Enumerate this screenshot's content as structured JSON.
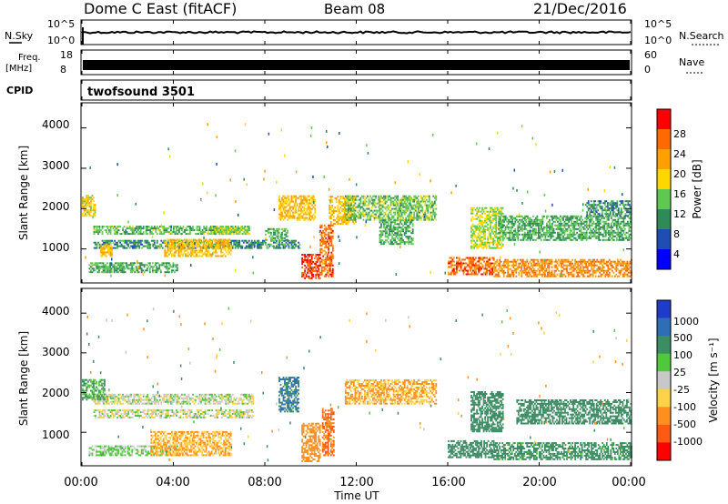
{
  "header": {
    "station": "Dome C East (fitACF)",
    "beam": "Beam 08",
    "date": "21/Dec/2016"
  },
  "nsky_panel": {
    "left_label": "N.Sky",
    "right_label": "N.Search",
    "left_ticks": [
      "10^5",
      "10^0"
    ],
    "right_ticks": [
      "10^5",
      "10^0"
    ]
  },
  "freq_panel": {
    "left_label_top": "Freq.",
    "left_label_bottom": "[MHz]",
    "right_label": "Nave",
    "left_ticks": [
      "18",
      "8"
    ],
    "right_ticks": [
      "60",
      "0"
    ]
  },
  "cpid_panel": {
    "label": "CPID",
    "text": "twofsound 3501"
  },
  "power_panel": {
    "ylabel": "Slant Range [km]",
    "yticks": [
      "4000",
      "3000",
      "2000",
      "1000"
    ],
    "colorbar_label": "Power [dB]",
    "colorbar_ticks": [
      "28",
      "24",
      "20",
      "16",
      "12",
      "8",
      "4"
    ],
    "colors": [
      "#0000ff",
      "#1e4eb4",
      "#2e8b57",
      "#5ec850",
      "#ffd700",
      "#ff9f00",
      "#ff6a00",
      "#ff0000"
    ]
  },
  "velocity_panel": {
    "ylabel": "Slant Range [km]",
    "yticks": [
      "4000",
      "3000",
      "2000",
      "1000"
    ],
    "colorbar_label": "Velocity [m s⁻¹]",
    "colorbar_ticks": [
      "1000",
      "500",
      "100",
      "25",
      "-25",
      "-100",
      "-500",
      "-1000"
    ],
    "colors": [
      "#1e3cc8",
      "#2e6eb4",
      "#3c8c64",
      "#50c83c",
      "#c8c8c8",
      "#ffd24a",
      "#ff9020",
      "#ff5a14",
      "#ff0000"
    ]
  },
  "xaxis": {
    "label": "Time UT",
    "ticks": [
      "00:00",
      "04:00",
      "08:00",
      "12:00",
      "16:00",
      "20:00",
      "00:00"
    ]
  },
  "chart_data": {
    "type": "heatmap",
    "title": "Dome C East (fitACF)  Beam 08  21/Dec/2016",
    "xlabel": "Time UT",
    "ylabel": "Slant Range [km]",
    "x_range_hours": [
      0,
      24
    ],
    "y_range_km": [
      180,
      4600
    ],
    "power_levels_dB": [
      4,
      8,
      12,
      16,
      20,
      24,
      28
    ],
    "velocity_levels_ms": [
      -1000,
      -500,
      -100,
      -25,
      25,
      100,
      500,
      1000
    ],
    "panels": [
      {
        "name": "Power [dB]",
        "regions": [
          {
            "t": [
              0.5,
              7.3
            ],
            "r": [
              1350,
              1550
            ],
            "v": 13
          },
          {
            "t": [
              0.5,
              9.5
            ],
            "r": [
              1000,
              1200
            ],
            "v": 10
          },
          {
            "t": [
              0.0,
              0.6
            ],
            "r": [
              1800,
              2300
            ],
            "v": 18
          },
          {
            "t": [
              0.8,
              1.3
            ],
            "r": [
              800,
              1100
            ],
            "v": 20
          },
          {
            "t": [
              0.3,
              4.2
            ],
            "r": [
              400,
              650
            ],
            "v": 12
          },
          {
            "t": [
              3.6,
              6.5
            ],
            "r": [
              800,
              1250
            ],
            "v": 20
          },
          {
            "t": [
              5.5,
              7.3
            ],
            "r": [
              1350,
              1500
            ],
            "v": 16
          },
          {
            "t": [
              8.0,
              9.0
            ],
            "r": [
              1200,
              1500
            ],
            "v": 13
          },
          {
            "t": [
              8.6,
              10.2
            ],
            "r": [
              1700,
              2300
            ],
            "v": 20
          },
          {
            "t": [
              9.6,
              10.4
            ],
            "r": [
              250,
              850
            ],
            "v": 28
          },
          {
            "t": [
              10.4,
              11.0
            ],
            "r": [
              300,
              1600
            ],
            "v": 26
          },
          {
            "t": [
              10.8,
              12.0
            ],
            "r": [
              1600,
              2300
            ],
            "v": 20
          },
          {
            "t": [
              11.5,
              15.5
            ],
            "r": [
              1700,
              2300
            ],
            "v": 14
          },
          {
            "t": [
              13.0,
              14.5
            ],
            "r": [
              1100,
              1700
            ],
            "v": 12
          },
          {
            "t": [
              16.0,
              18.0
            ],
            "r": [
              350,
              800
            ],
            "v": 26
          },
          {
            "t": [
              17.0,
              18.4
            ],
            "r": [
              1000,
              2000
            ],
            "v": 16
          },
          {
            "t": [
              18.0,
              24.0
            ],
            "r": [
              300,
              750
            ],
            "v": 24
          },
          {
            "t": [
              18.2,
              24.0
            ],
            "r": [
              1200,
              1800
            ],
            "v": 12
          },
          {
            "t": [
              22.0,
              24.0
            ],
            "r": [
              1800,
              2200
            ],
            "v": 10
          }
        ]
      },
      {
        "name": "Velocity [m s⁻¹]",
        "regions": [
          {
            "t": [
              0.5,
              7.5
            ],
            "r": [
              1700,
              1950
            ],
            "v": 0
          },
          {
            "t": [
              0.5,
              7.5
            ],
            "r": [
              1350,
              1550
            ],
            "v": 0
          },
          {
            "t": [
              0.3,
              4.2
            ],
            "r": [
              400,
              650
            ],
            "v": 50
          },
          {
            "t": [
              3.0,
              6.5
            ],
            "r": [
              400,
              1000
            ],
            "v": -100
          },
          {
            "t": [
              0.0,
              1.0
            ],
            "r": [
              1800,
              2300
            ],
            "v": 100
          },
          {
            "t": [
              8.6,
              9.5
            ],
            "r": [
              1500,
              2400
            ],
            "v": 500
          },
          {
            "t": [
              9.6,
              10.4
            ],
            "r": [
              250,
              1200
            ],
            "v": -200
          },
          {
            "t": [
              10.5,
              11.0
            ],
            "r": [
              400,
              1600
            ],
            "v": -500
          },
          {
            "t": [
              11.5,
              15.5
            ],
            "r": [
              1700,
              2300
            ],
            "v": -100
          },
          {
            "t": [
              16.0,
              18.0
            ],
            "r": [
              350,
              800
            ],
            "v": 200
          },
          {
            "t": [
              17.0,
              18.4
            ],
            "r": [
              1000,
              2000
            ],
            "v": 200
          },
          {
            "t": [
              18.0,
              24.0
            ],
            "r": [
              300,
              750
            ],
            "v": 150
          },
          {
            "t": [
              19.0,
              24.0
            ],
            "r": [
              1200,
              1800
            ],
            "v": 300
          }
        ]
      }
    ]
  }
}
